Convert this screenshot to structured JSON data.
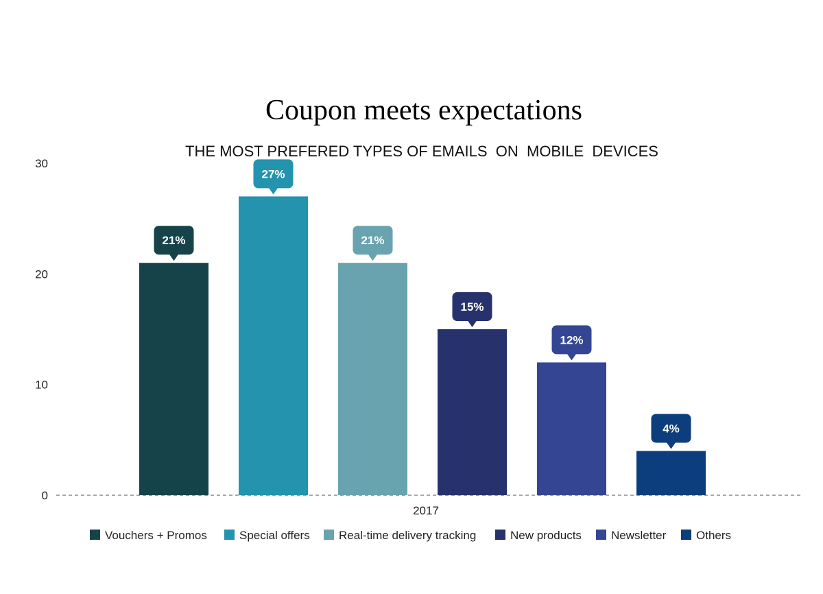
{
  "chart_data": {
    "type": "bar",
    "title": "Coupon meets expectations",
    "subtitle": "THE MOST PREFERED TYPES OF EMAILS  ON  MOBILE  DEVICES",
    "categories": [
      "2017"
    ],
    "xlabel": "2017",
    "ylabel": "",
    "ylim": [
      0,
      30
    ],
    "yticks": [
      "0",
      "10",
      "20",
      "30"
    ],
    "grid": false,
    "legend_position": "bottom",
    "series": [
      {
        "name": "Vouchers + Promos",
        "values": [
          21
        ],
        "label": "21%",
        "color": "#16434a"
      },
      {
        "name": "Special offers",
        "values": [
          27
        ],
        "label": "27%",
        "color": "#2393ae"
      },
      {
        "name": "Real-time delivery tracking",
        "values": [
          21
        ],
        "label": "21%",
        "color": "#69a3b0"
      },
      {
        "name": "New products",
        "values": [
          15
        ],
        "label": "15%",
        "color": "#27326d"
      },
      {
        "name": "Newsletter",
        "values": [
          12
        ],
        "label": "12%",
        "color": "#344693"
      },
      {
        "name": "Others",
        "values": [
          4
        ],
        "label": "4%",
        "color": "#0c3d7c"
      }
    ]
  }
}
